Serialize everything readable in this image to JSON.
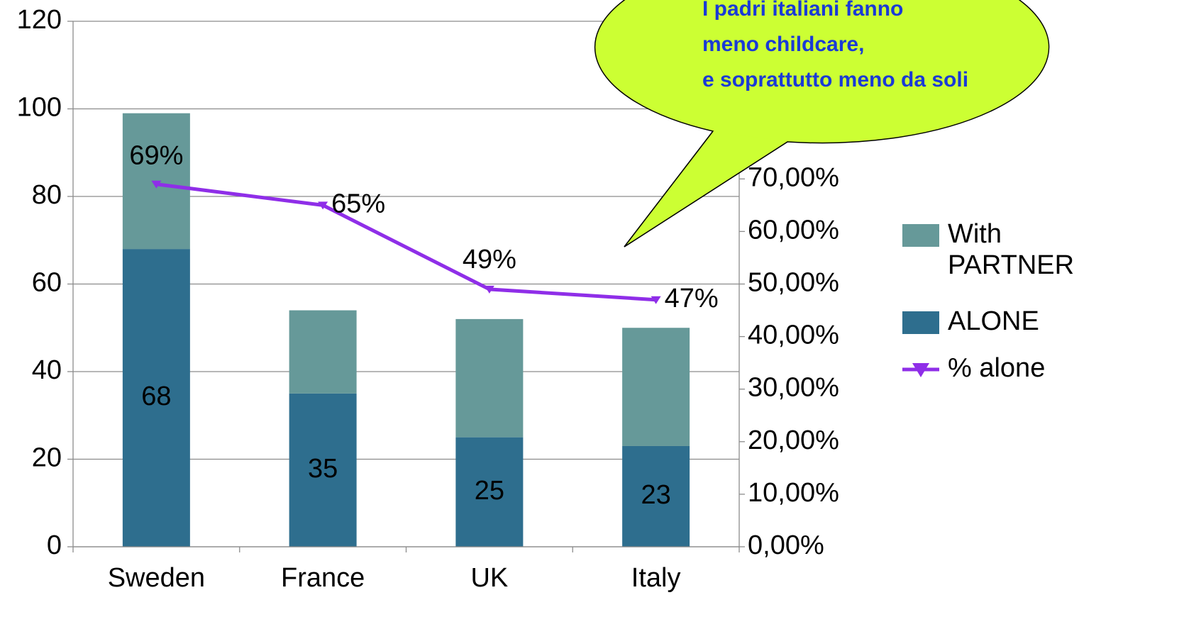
{
  "chart_data": {
    "type": "bar",
    "categories": [
      "Sweden",
      "France",
      "UK",
      "Italy"
    ],
    "series": [
      {
        "name": "ALONE",
        "color": "#2e6e8e",
        "values": [
          68,
          35,
          25,
          23
        ],
        "value_labels": [
          "68",
          "35",
          "25",
          "23"
        ]
      },
      {
        "name": "With PARTNER",
        "color": "#669999",
        "values": [
          31,
          19,
          27,
          27
        ]
      },
      {
        "name": "% alone",
        "type": "line",
        "axis": "y2",
        "color": "#8f2ee8",
        "values": [
          69,
          65,
          49,
          47
        ],
        "value_labels": [
          "69%",
          "65%",
          "49%",
          "47%"
        ]
      }
    ],
    "stacked": true,
    "ylim": [
      0,
      120
    ],
    "yticks": [
      0,
      20,
      40,
      60,
      80,
      100,
      120
    ],
    "y2lim": [
      0,
      100
    ],
    "y2ticks": [
      {
        "value": 0,
        "label": "0,00%"
      },
      {
        "value": 10,
        "label": "10,00%"
      },
      {
        "value": 20,
        "label": "20,00%"
      },
      {
        "value": 30,
        "label": "30,00%"
      },
      {
        "value": 40,
        "label": "40,00%"
      },
      {
        "value": 50,
        "label": "50,00%"
      },
      {
        "value": 60,
        "label": "60,00%"
      },
      {
        "value": 70,
        "label": "70,00%"
      }
    ],
    "grid": true,
    "legend": "right",
    "annotation": [
      "I padri italiani fanno",
      "meno childcare,",
      "e soprattutto meno da soli"
    ]
  }
}
